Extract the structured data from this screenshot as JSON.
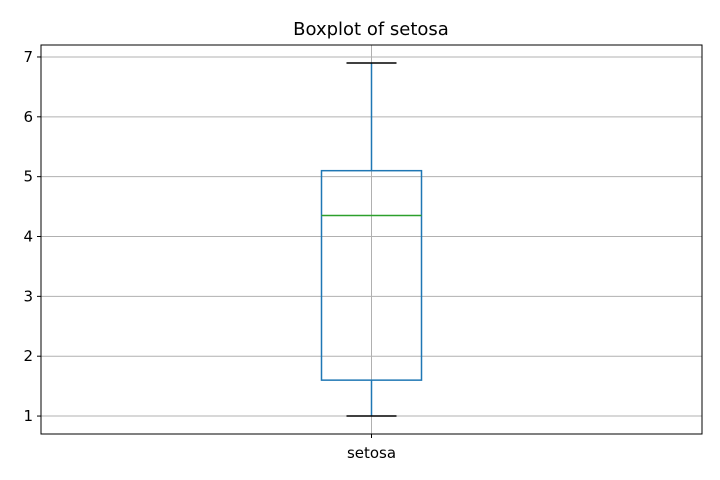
{
  "chart_data": {
    "type": "box",
    "title": "Boxplot of setosa",
    "xlabel": "",
    "ylabel": "",
    "categories": [
      "setosa"
    ],
    "series": [
      {
        "name": "setosa",
        "whisker_low": 1.0,
        "q1": 1.6,
        "median": 4.35,
        "q3": 5.1,
        "whisker_high": 6.9
      }
    ],
    "ylim": [
      0.7,
      7.2
    ],
    "yticks": [
      1,
      2,
      3,
      4,
      5,
      6,
      7
    ],
    "grid": true,
    "legend": "none",
    "colors": {
      "box": "#1f77b4",
      "median": "#2ca02c",
      "cap": "#000000",
      "grid": "#b0b0b0",
      "frame": "#000000"
    }
  }
}
